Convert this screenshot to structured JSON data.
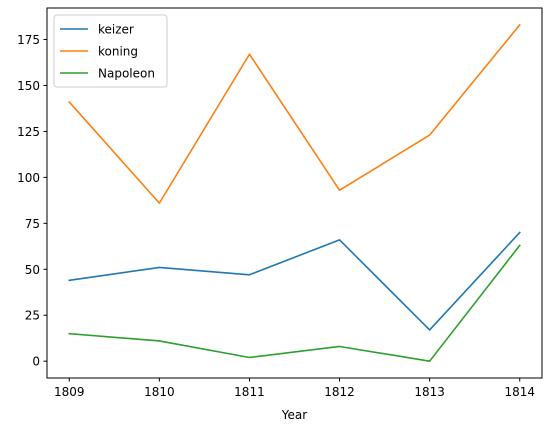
{
  "chart_data": {
    "type": "line",
    "title": "",
    "xlabel": "Year",
    "ylabel": "",
    "categories": [
      "1809",
      "1810",
      "1811",
      "1812",
      "1813",
      "1814"
    ],
    "series": [
      {
        "name": "keizer",
        "color": "#1f77b4",
        "values": [
          44,
          51,
          47,
          66,
          17,
          70
        ]
      },
      {
        "name": "koning",
        "color": "#ff7f0e",
        "values": [
          141,
          86,
          167,
          93,
          123,
          183
        ]
      },
      {
        "name": "Napoleon",
        "color": "#2ca02c",
        "values": [
          15,
          11,
          2,
          8,
          0,
          63
        ]
      }
    ],
    "ylim": [
      -9.15,
      192.15
    ],
    "yticks": [
      0,
      25,
      50,
      75,
      100,
      125,
      150,
      175
    ],
    "grid": false,
    "legend_position": "upper-left"
  }
}
